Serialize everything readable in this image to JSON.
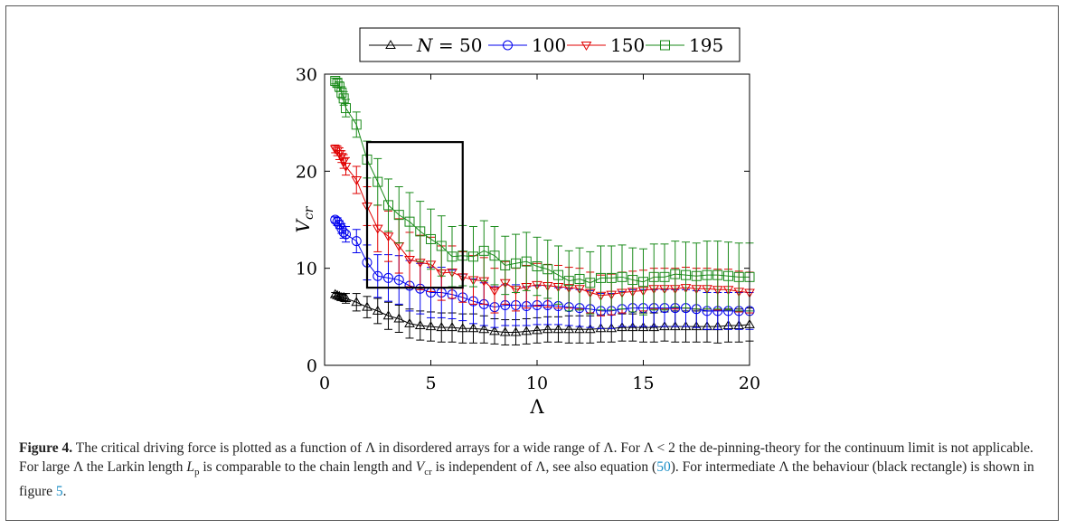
{
  "chart_data": {
    "type": "line",
    "xlabel": "Λ",
    "ylabel": "V",
    "ylabel_sub": "cr",
    "xlim": [
      0,
      20
    ],
    "ylim": [
      0,
      30
    ],
    "xticks": [
      "0",
      "5",
      "10",
      "15",
      "20"
    ],
    "yticks": [
      "0",
      "10",
      "20",
      "30"
    ],
    "legend": {
      "placement": "top-center",
      "prefix": "N = ",
      "entries": [
        "50",
        "100",
        "150",
        "195"
      ]
    },
    "annotation_rectangle": {
      "x": [
        2,
        6.5
      ],
      "y": [
        8,
        23
      ],
      "color": "#000000"
    },
    "series": [
      {
        "name": "50",
        "color": "#000000",
        "marker": "triangle-up",
        "x": [
          0.5,
          0.6,
          0.7,
          0.8,
          0.9,
          1,
          1.5,
          2,
          2.5,
          3,
          3.5,
          4,
          4.5,
          5,
          5.5,
          6,
          6.5,
          7,
          7.5,
          8,
          8.5,
          9,
          9.5,
          10,
          10.5,
          11,
          11.5,
          12,
          12.5,
          13,
          13.5,
          14,
          14.5,
          15,
          15.5,
          16,
          16.5,
          17,
          17.5,
          18,
          18.5,
          19,
          19.5,
          20
        ],
        "y": [
          7.3,
          7.2,
          7.1,
          7,
          7,
          6.9,
          6.5,
          6,
          5.6,
          5.1,
          4.8,
          4.3,
          4.1,
          4,
          3.9,
          3.9,
          3.8,
          3.8,
          3.7,
          3.5,
          3.4,
          3.4,
          3.5,
          3.6,
          3.7,
          3.7,
          3.7,
          3.7,
          3.7,
          3.8,
          3.8,
          3.9,
          3.9,
          3.9,
          3.9,
          4,
          4,
          4,
          4,
          4,
          4,
          4.1,
          4.1,
          4.2
        ],
        "err": [
          0.2,
          0.2,
          0.3,
          0.3,
          0.4,
          0.5,
          0.9,
          1.1,
          1.3,
          1.4,
          1.4,
          1.5,
          1.5,
          1.5,
          1.5,
          1.5,
          1.5,
          1.5,
          1.4,
          1.3,
          1.3,
          1.3,
          1.3,
          1.3,
          1.3,
          1.3,
          1.4,
          1.4,
          1.4,
          1.4,
          1.4,
          1.4,
          1.4,
          1.5,
          1.5,
          1.5,
          1.6,
          1.6,
          1.6,
          1.6,
          1.7,
          1.7,
          1.7,
          1.7
        ]
      },
      {
        "name": "100",
        "color": "#0000ee",
        "marker": "circle",
        "x": [
          0.5,
          0.6,
          0.7,
          0.8,
          0.9,
          1,
          1.5,
          2,
          2.5,
          3,
          3.5,
          4,
          4.5,
          5,
          5.5,
          6,
          6.5,
          7,
          7.5,
          8,
          8.5,
          9,
          9.5,
          10,
          10.5,
          11,
          11.5,
          12,
          12.5,
          13,
          13.5,
          14,
          14.5,
          15,
          15.5,
          16,
          16.5,
          17,
          17.5,
          18,
          18.5,
          19,
          19.5,
          20
        ],
        "y": [
          15,
          14.8,
          14.5,
          14.1,
          13.7,
          13.5,
          12.8,
          10.6,
          9.2,
          9,
          8.8,
          8.2,
          7.9,
          7.5,
          7.5,
          7.3,
          7,
          6.6,
          6.3,
          6,
          6.2,
          6.2,
          6.1,
          6.2,
          6.2,
          6.1,
          6,
          5.9,
          5.8,
          5.6,
          5.6,
          5.8,
          5.9,
          5.9,
          5.9,
          5.9,
          5.9,
          5.9,
          5.8,
          5.6,
          5.6,
          5.6,
          5.6,
          5.6
        ],
        "err": [
          0.3,
          0.4,
          0.4,
          0.5,
          0.6,
          0.8,
          1.2,
          1.8,
          2.2,
          2.4,
          2.5,
          2.6,
          2.6,
          2.6,
          2.6,
          2.5,
          2.4,
          2.3,
          2.2,
          2.1,
          2.1,
          2.1,
          2.0,
          2.0,
          2.0,
          1.9,
          1.9,
          1.9,
          1.9,
          1.8,
          1.8,
          1.8,
          1.9,
          1.9,
          1.9,
          1.9,
          1.9,
          1.9,
          1.9,
          1.9,
          1.9,
          1.9,
          1.9,
          1.9
        ]
      },
      {
        "name": "150",
        "color": "#e00000",
        "marker": "triangle-down",
        "x": [
          0.5,
          0.6,
          0.7,
          0.8,
          0.9,
          1,
          1.5,
          2,
          2.5,
          3,
          3.5,
          4,
          4.5,
          5,
          5.5,
          6,
          6.5,
          7,
          7.5,
          8,
          8.5,
          9,
          9.5,
          10,
          10.5,
          11,
          11.5,
          12,
          12.5,
          13,
          13.5,
          14,
          14.5,
          15,
          15.5,
          16,
          16.5,
          17,
          17.5,
          18,
          18.5,
          19,
          19.5,
          20
        ],
        "y": [
          22.3,
          22.1,
          21.8,
          21.5,
          21,
          20.5,
          19.1,
          16.4,
          14.1,
          13.3,
          12.3,
          10.9,
          10.6,
          10.4,
          9.5,
          9.6,
          9.1,
          8.8,
          8.7,
          7.7,
          8.5,
          7.8,
          8.1,
          8.3,
          8.2,
          8.1,
          8,
          7.9,
          7.5,
          7.2,
          7.3,
          7.5,
          7.6,
          7.7,
          7.9,
          7.9,
          7.9,
          8,
          7.9,
          7.9,
          7.8,
          7.8,
          7.6,
          7.5
        ],
        "err": [
          0.4,
          0.5,
          0.6,
          0.6,
          0.7,
          0.9,
          1.4,
          2.0,
          2.4,
          2.6,
          2.8,
          2.8,
          2.8,
          2.8,
          2.8,
          2.7,
          2.6,
          2.5,
          2.4,
          2.3,
          2.2,
          2.2,
          2.2,
          2.2,
          2.2,
          2.2,
          2.1,
          2.1,
          2.1,
          2.1,
          2.1,
          2.1,
          2.1,
          2.1,
          2.1,
          2.1,
          2.1,
          2.1,
          2.1,
          2.1,
          2.1,
          2.1,
          2.1,
          2.1
        ]
      },
      {
        "name": "195",
        "color": "#1a8a1a",
        "marker": "square",
        "x": [
          0.5,
          0.6,
          0.7,
          0.8,
          0.9,
          1,
          1.5,
          2,
          2.5,
          3,
          3.5,
          4,
          4.5,
          5,
          5.5,
          6,
          6.5,
          7,
          7.5,
          8,
          8.5,
          9,
          9.5,
          10,
          10.5,
          11,
          11.5,
          12,
          12.5,
          13,
          13.5,
          14,
          14.5,
          15,
          15.5,
          16,
          16.5,
          17,
          17.5,
          18,
          18.5,
          19,
          19.5,
          20
        ],
        "y": [
          29.3,
          29.1,
          28.7,
          28.1,
          27.5,
          26.5,
          24.8,
          21.2,
          18.9,
          16.5,
          15.5,
          14.8,
          13.8,
          13,
          12.3,
          11.2,
          11.3,
          11.2,
          11.8,
          11.3,
          10.3,
          10.5,
          10.7,
          10.2,
          9.9,
          9.3,
          8.7,
          8.9,
          8.5,
          9,
          9,
          9.1,
          8.8,
          8.6,
          9.1,
          9.1,
          9.4,
          9.3,
          9.2,
          9.3,
          9.3,
          9.2,
          9.1,
          9.1
        ],
        "err": [
          0.3,
          0.4,
          0.5,
          0.6,
          0.7,
          0.9,
          1.3,
          1.9,
          2.4,
          2.7,
          2.9,
          3.0,
          3.1,
          3.1,
          3.1,
          3.1,
          3.1,
          3.1,
          3.1,
          3.0,
          3.0,
          3.0,
          3.0,
          3.0,
          3.0,
          3.0,
          3.1,
          3.2,
          3.2,
          3.3,
          3.3,
          3.3,
          3.3,
          3.4,
          3.4,
          3.4,
          3.4,
          3.4,
          3.4,
          3.5,
          3.5,
          3.5,
          3.5,
          3.5
        ]
      }
    ]
  },
  "caption": {
    "label": "Figure 4.",
    "part1": " The critical driving force is plotted as a function of Λ in disordered arrays for a wide range of Λ. For Λ < 2 the de-pinning-theory for the continuum limit is not applicable. For large Λ the Larkin length ",
    "lp_main": "L",
    "lp_sub": "p",
    "part2": " is comparable to the chain length and ",
    "vcr_main": "V",
    "vcr_sub": "cr",
    "part3": " is independent of Λ, see also equation (",
    "eq_ref": "50",
    "part4": "). For intermediate Λ the behaviour (black rectangle) is shown in figure ",
    "fig_ref": "5",
    "part5": "."
  }
}
